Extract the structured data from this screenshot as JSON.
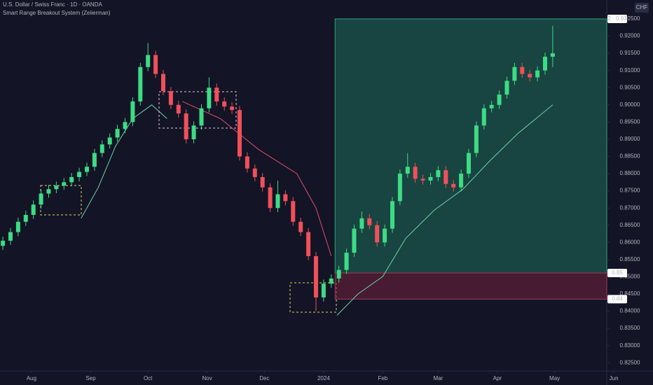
{
  "chart_data": {
    "type": "candlestick",
    "title": "U.S. Dollar / Swiss Franc · 1D · OANDA",
    "subtitle": "Smart Range Breakout System (Zeiierman)",
    "currency": "CHF",
    "up_color": "#3ddc84",
    "down_color": "#f0505a",
    "x": [
      16,
      20,
      24,
      28,
      32,
      36,
      40,
      44,
      48,
      52,
      56,
      60,
      64,
      68,
      72,
      76,
      80,
      84,
      88,
      92,
      96,
      100,
      104,
      108,
      112,
      116,
      120,
      124,
      128,
      132,
      136,
      140,
      144,
      148,
      152,
      156,
      160,
      164,
      168,
      172,
      176,
      180,
      184,
      188,
      192,
      196,
      200,
      204,
      208,
      212,
      216,
      220,
      224,
      228,
      232,
      236,
      240,
      244,
      248,
      252,
      256,
      260,
      264,
      268,
      272,
      276,
      280,
      284,
      288,
      292,
      296,
      300,
      304
    ],
    "open": [
      0.859,
      0.8605,
      0.863,
      0.866,
      0.868,
      0.871,
      0.8742,
      0.8755,
      0.8765,
      0.8775,
      0.879,
      0.8805,
      0.882,
      0.886,
      0.8885,
      0.8905,
      0.893,
      0.895,
      0.901,
      0.911,
      0.9145,
      0.909,
      0.904,
      0.9,
      0.8975,
      0.89,
      0.894,
      0.899,
      0.905,
      0.901,
      0.8995,
      0.8985,
      0.885,
      0.8815,
      0.879,
      0.876,
      0.87,
      0.874,
      0.872,
      0.866,
      0.863,
      0.856,
      0.844,
      0.848,
      0.8495,
      0.852,
      0.857,
      0.864,
      0.867,
      0.865,
      0.86,
      0.864,
      0.872,
      0.88,
      0.882,
      0.8785,
      0.878,
      0.879,
      0.881,
      0.877,
      0.876,
      0.88,
      0.886,
      0.894,
      0.899,
      0.9,
      0.903,
      0.907,
      0.911,
      0.909,
      0.908,
      0.91,
      0.914
    ],
    "high": [
      0.8617,
      0.8642,
      0.8672,
      0.8692,
      0.8722,
      0.8754,
      0.8767,
      0.8777,
      0.8787,
      0.8802,
      0.8817,
      0.8832,
      0.8872,
      0.8897,
      0.8917,
      0.8942,
      0.8962,
      0.9022,
      0.9122,
      0.918,
      0.9157,
      0.9102,
      0.9052,
      0.9012,
      0.8987,
      0.8952,
      0.9002,
      0.908,
      0.9062,
      0.9022,
      0.9007,
      0.8997,
      0.8862,
      0.8827,
      0.8802,
      0.8772,
      0.878,
      0.8752,
      0.8732,
      0.8672,
      0.8642,
      0.8572,
      0.8492,
      0.8507,
      0.8532,
      0.8582,
      0.8652,
      0.869,
      0.8682,
      0.8662,
      0.8652,
      0.8732,
      0.8812,
      0.886,
      0.8832,
      0.8797,
      0.8802,
      0.8822,
      0.8822,
      0.8782,
      0.8812,
      0.8872,
      0.8952,
      0.9002,
      0.9012,
      0.9042,
      0.9082,
      0.9122,
      0.9122,
      0.9102,
      0.9112,
      0.9152,
      0.923
    ],
    "low": [
      0.8578,
      0.8593,
      0.8618,
      0.8648,
      0.8668,
      0.8698,
      0.873,
      0.8743,
      0.8753,
      0.8763,
      0.8778,
      0.8793,
      0.8808,
      0.8848,
      0.8873,
      0.8893,
      0.8918,
      0.8938,
      0.8998,
      0.9098,
      0.9078,
      0.9028,
      0.8988,
      0.8963,
      0.8888,
      0.8888,
      0.8928,
      0.8978,
      0.8998,
      0.8983,
      0.8973,
      0.8838,
      0.8803,
      0.8778,
      0.8748,
      0.8688,
      0.8688,
      0.8708,
      0.8648,
      0.8618,
      0.8548,
      0.84,
      0.8428,
      0.8468,
      0.8483,
      0.8508,
      0.8558,
      0.8628,
      0.8638,
      0.8588,
      0.8588,
      0.8628,
      0.8708,
      0.8788,
      0.8773,
      0.8768,
      0.8768,
      0.8778,
      0.8758,
      0.8748,
      0.8748,
      0.8788,
      0.8848,
      0.8928,
      0.8978,
      0.8988,
      0.9018,
      0.9058,
      0.9078,
      0.9068,
      0.9068,
      0.9088,
      0.911
    ],
    "close": [
      0.8605,
      0.863,
      0.866,
      0.868,
      0.871,
      0.8742,
      0.8755,
      0.8765,
      0.8775,
      0.879,
      0.8805,
      0.882,
      0.886,
      0.8885,
      0.8905,
      0.893,
      0.895,
      0.901,
      0.911,
      0.9145,
      0.909,
      0.904,
      0.9,
      0.8975,
      0.89,
      0.894,
      0.899,
      0.905,
      0.901,
      0.8995,
      0.8985,
      0.885,
      0.8815,
      0.879,
      0.876,
      0.87,
      0.874,
      0.872,
      0.866,
      0.863,
      0.856,
      0.844,
      0.848,
      0.8495,
      0.852,
      0.857,
      0.864,
      0.867,
      0.865,
      0.86,
      0.864,
      0.872,
      0.88,
      0.882,
      0.8785,
      0.878,
      0.879,
      0.881,
      0.877,
      0.876,
      0.88,
      0.886,
      0.894,
      0.899,
      0.9,
      0.903,
      0.907,
      0.911,
      0.909,
      0.908,
      0.91,
      0.914,
      0.915
    ],
    "lines": [
      {
        "color": "#6fd3a8",
        "x": [
          57,
          66,
          75,
          84,
          94,
          102
        ],
        "values": [
          0.867,
          0.876,
          0.888,
          0.896,
          0.9,
          0.896
        ]
      },
      {
        "color": "#e0506a",
        "x": [
          110,
          130,
          150,
          170,
          180,
          188
        ],
        "values": [
          0.901,
          0.896,
          0.887,
          0.88,
          0.87,
          0.856
        ]
      },
      {
        "color": "#6fd3a8",
        "x": [
          191,
          202,
          215,
          227,
          242,
          257,
          271,
          286,
          304
        ],
        "values": [
          0.8388,
          0.845,
          0.8501,
          0.8612,
          0.8694,
          0.8755,
          0.8837,
          0.8918,
          0.9
        ]
      }
    ],
    "position": {
      "start": 190,
      "target": 0.925,
      "entry": 0.8511,
      "stop": 0.8435,
      "target_label": "2 · 0.93",
      "entry_label": "0.85",
      "stop_label": "0.84"
    },
    "xlim": [
      14.5,
      332.3
    ],
    "xticks": [
      {
        "value": 31,
        "label": "Aug"
      },
      {
        "value": 62,
        "label": "Sep"
      },
      {
        "value": 92,
        "label": "Oct"
      },
      {
        "value": 123,
        "label": "Nov"
      },
      {
        "value": 153,
        "label": "Dec"
      },
      {
        "value": 184,
        "label": "2024"
      },
      {
        "value": 215,
        "label": "Feb"
      },
      {
        "value": 244,
        "label": "Mar"
      },
      {
        "value": 275,
        "label": "Apr"
      },
      {
        "value": 305,
        "label": "May"
      },
      {
        "value": 336,
        "label": "Jun"
      }
    ],
    "ylim": [
      0.8226,
      0.9305
    ],
    "yticks": [
      {
        "value": 0.825,
        "label": "0.82500"
      },
      {
        "value": 0.83,
        "label": "0.83000"
      },
      {
        "value": 0.835,
        "label": "0.83500"
      },
      {
        "value": 0.84,
        "label": "0.84000"
      },
      {
        "value": 0.845,
        "label": "0.84500"
      },
      {
        "value": 0.85,
        "label": "0.85000"
      },
      {
        "value": 0.855,
        "label": "0.85500"
      },
      {
        "value": 0.86,
        "label": "0.86000"
      },
      {
        "value": 0.865,
        "label": "0.86500"
      },
      {
        "value": 0.87,
        "label": "0.87000"
      },
      {
        "value": 0.875,
        "label": "0.87500"
      },
      {
        "value": 0.88,
        "label": "0.88000"
      },
      {
        "value": 0.885,
        "label": "0.88500"
      },
      {
        "value": 0.89,
        "label": "0.89000"
      },
      {
        "value": 0.895,
        "label": "0.89500"
      },
      {
        "value": 0.9,
        "label": "0.90000"
      },
      {
        "value": 0.905,
        "label": "0.90500"
      },
      {
        "value": 0.91,
        "label": "0.91000"
      },
      {
        "value": 0.915,
        "label": "0.91500"
      },
      {
        "value": 0.92,
        "label": "0.92000"
      },
      {
        "value": 0.925,
        "label": "0.92500"
      }
    ]
  }
}
